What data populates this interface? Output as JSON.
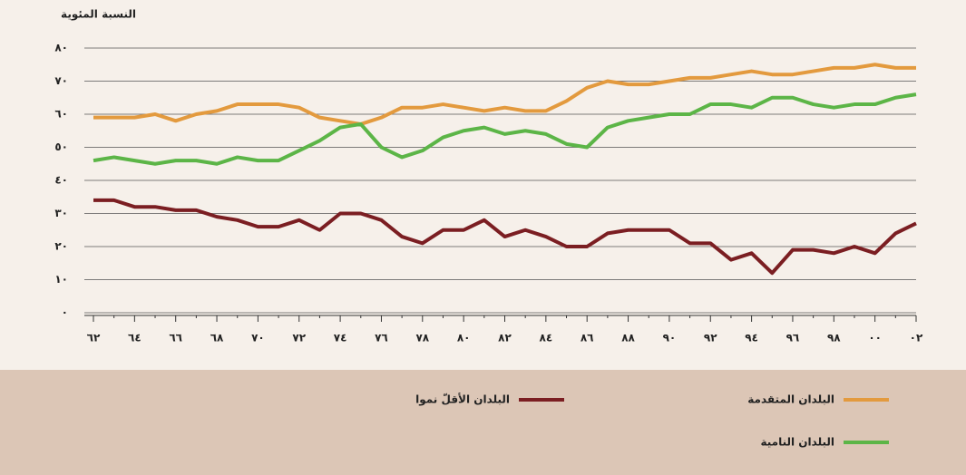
{
  "chart_data": {
    "type": "line",
    "y_label": "النسبة المئوية",
    "categories": [
      "٦٢",
      null,
      "٦٤",
      null,
      "٦٦",
      null,
      "٦٨",
      null,
      "٧٠",
      null,
      "٧٢",
      null,
      "٧٤",
      null,
      "٧٦",
      null,
      "٧٨",
      null,
      "٨٠",
      null,
      "٨٢",
      null,
      "٨٤",
      null,
      "٨٦",
      null,
      "٨٨",
      null,
      "٩٠",
      null,
      "٩٢",
      null,
      "٩٤",
      null,
      "٩٦",
      null,
      "٩٨",
      null,
      "٠٠",
      null,
      "٠٢"
    ],
    "series": [
      {
        "name": "البلدان المتقدمة",
        "color": "#e39a3e",
        "values": [
          59,
          59,
          59,
          60,
          58,
          60,
          61,
          63,
          63,
          63,
          62,
          59,
          58,
          57,
          59,
          62,
          62,
          63,
          62,
          61,
          62,
          61,
          61,
          64,
          68,
          70,
          69,
          69,
          70,
          71,
          71,
          72,
          73,
          72,
          72,
          73,
          74,
          74,
          75,
          74,
          74
        ]
      },
      {
        "name": "البلدان النامية",
        "color": "#5cb547",
        "values": [
          46,
          47,
          46,
          45,
          46,
          46,
          45,
          47,
          46,
          46,
          49,
          52,
          56,
          57,
          50,
          47,
          49,
          53,
          55,
          56,
          54,
          55,
          54,
          51,
          50,
          56,
          58,
          59,
          60,
          60,
          63,
          63,
          62,
          65,
          65,
          63,
          62,
          63,
          63,
          65,
          66
        ]
      },
      {
        "name": "البلدان الأقلّ نموا",
        "color": "#7b1e22",
        "values": [
          34,
          34,
          32,
          32,
          31,
          31,
          29,
          28,
          26,
          26,
          28,
          25,
          30,
          30,
          28,
          23,
          21,
          25,
          25,
          28,
          23,
          25,
          23,
          20,
          20,
          24,
          25,
          25,
          25,
          21,
          21,
          16,
          18,
          12,
          19,
          19,
          18,
          20,
          18,
          24,
          27
        ]
      }
    ],
    "ylim": [
      0,
      80
    ],
    "yticks": [
      {
        "value": 0,
        "label": "٠"
      },
      {
        "value": 10,
        "label": "١٠"
      },
      {
        "value": 20,
        "label": "٢٠"
      },
      {
        "value": 30,
        "label": "٣٠"
      },
      {
        "value": 40,
        "label": "٤٠"
      },
      {
        "value": 50,
        "label": "٥٠"
      },
      {
        "value": 60,
        "label": "٦٠"
      },
      {
        "value": 70,
        "label": "٧٠"
      },
      {
        "value": 80,
        "label": "٨٠"
      }
    ],
    "grid": true
  }
}
